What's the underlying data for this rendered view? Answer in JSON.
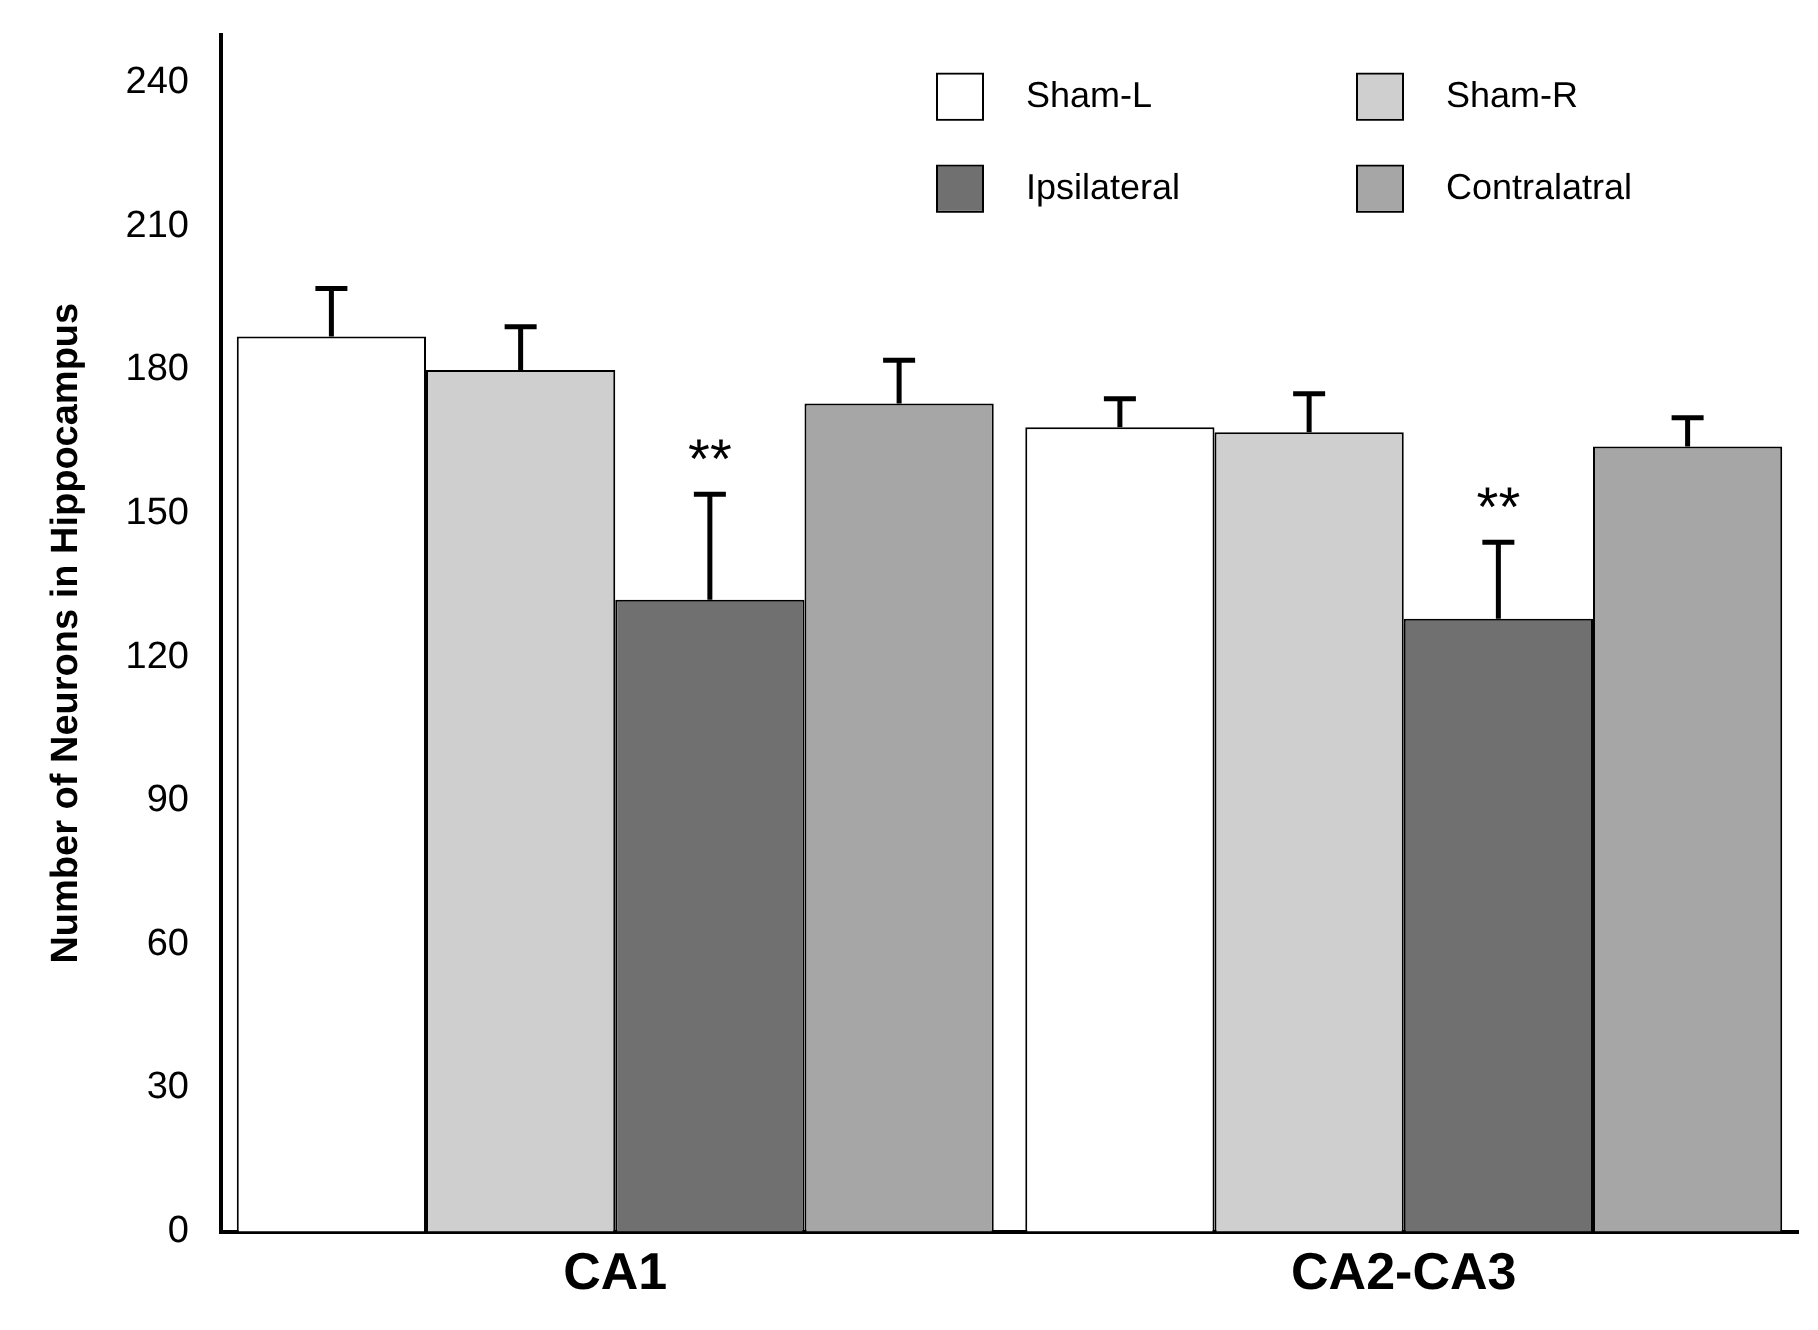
{
  "chart_data": {
    "type": "bar",
    "ylabel": "Number of Neurons in Hippocampus",
    "categories": [
      "CA1",
      "CA2-CA3"
    ],
    "series": [
      {
        "name": "Sham-L",
        "color": "#ffffff",
        "values": [
          187,
          168
        ],
        "errors": [
          [
            187,
            197
          ],
          [
            168,
            174
          ]
        ]
      },
      {
        "name": "Sham-R",
        "color": "#cfcfcf",
        "values": [
          180,
          167
        ],
        "errors": [
          [
            180,
            189
          ],
          [
            167,
            175
          ]
        ]
      },
      {
        "name": "Ipsilateral",
        "color": "#707070",
        "values": [
          132,
          128
        ],
        "errors": [
          [
            132,
            154
          ],
          [
            128,
            144
          ]
        ]
      },
      {
        "name": "Contralatral",
        "color": "#a6a6a6",
        "values": [
          173,
          164
        ],
        "errors": [
          [
            173,
            182
          ],
          [
            164,
            170
          ]
        ]
      }
    ],
    "ylim": [
      0,
      250
    ],
    "yticks": [
      0,
      30,
      60,
      90,
      120,
      150,
      180,
      210,
      240
    ],
    "grid": false,
    "legend": "top right",
    "annotations": [
      {
        "text": "**",
        "x": "CA1",
        "y": 154
      },
      {
        "text": "**",
        "x": "CA2-CA3",
        "y": 144
      }
    ]
  }
}
